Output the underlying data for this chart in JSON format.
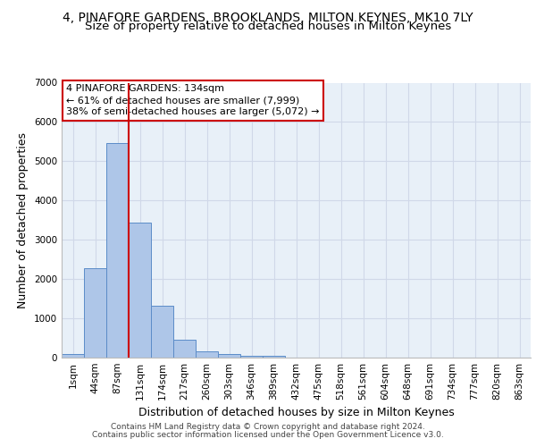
{
  "title_line1": "4, PINAFORE GARDENS, BROOKLANDS, MILTON KEYNES, MK10 7LY",
  "title_line2": "Size of property relative to detached houses in Milton Keynes",
  "xlabel": "Distribution of detached houses by size in Milton Keynes",
  "ylabel": "Number of detached properties",
  "bar_labels": [
    "1sqm",
    "44sqm",
    "87sqm",
    "131sqm",
    "174sqm",
    "217sqm",
    "260sqm",
    "303sqm",
    "346sqm",
    "389sqm",
    "432sqm",
    "475sqm",
    "518sqm",
    "561sqm",
    "604sqm",
    "648sqm",
    "691sqm",
    "734sqm",
    "777sqm",
    "820sqm",
    "863sqm"
  ],
  "bar_heights": [
    80,
    2280,
    5470,
    3440,
    1310,
    460,
    155,
    90,
    55,
    35,
    0,
    0,
    0,
    0,
    0,
    0,
    0,
    0,
    0,
    0,
    0
  ],
  "bar_color": "#aec6e8",
  "bar_edge_color": "#5b8cc8",
  "grid_color": "#d0d8e8",
  "background_color": "#e8f0f8",
  "vline_x_index": 2,
  "vline_color": "#cc0000",
  "ylim": [
    0,
    7000
  ],
  "yticks": [
    0,
    1000,
    2000,
    3000,
    4000,
    5000,
    6000,
    7000
  ],
  "annotation_text": "4 PINAFORE GARDENS: 134sqm\n← 61% of detached houses are smaller (7,999)\n38% of semi-detached houses are larger (5,072) →",
  "annotation_box_color": "#ffffff",
  "annotation_box_edge": "#cc0000",
  "footer_line1": "Contains HM Land Registry data © Crown copyright and database right 2024.",
  "footer_line2": "Contains public sector information licensed under the Open Government Licence v3.0.",
  "title_fontsize": 10,
  "subtitle_fontsize": 9.5,
  "tick_fontsize": 7.5,
  "xlabel_fontsize": 9,
  "ylabel_fontsize": 9,
  "annotation_fontsize": 8,
  "footer_fontsize": 6.5
}
